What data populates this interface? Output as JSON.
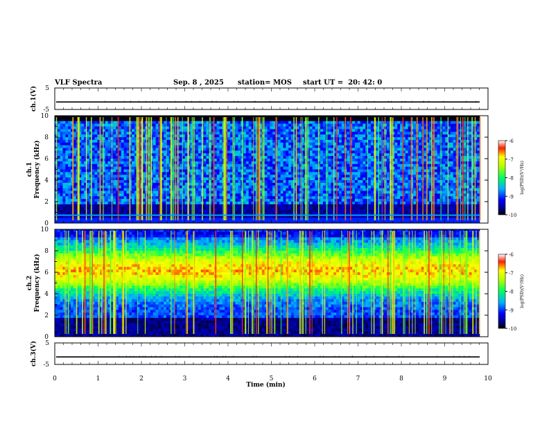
{
  "header": {
    "title": "VLF Spectra",
    "date": "Sep. 8 , 2025",
    "station": "station= MOS",
    "start": "start UT =  20: 42: 0"
  },
  "chart_data": [
    {
      "type": "line",
      "title": "",
      "ylabel": "ch.1(V)",
      "ylim": [
        -5,
        5
      ],
      "yticks": [
        "5",
        "-5"
      ],
      "xlim": [
        0,
        10
      ],
      "series": [
        {
          "values": [
            -1.5,
            -1.5
          ]
        }
      ]
    },
    {
      "type": "heatmap",
      "ylabel": "ch.1\nFrequency (kHz)",
      "ylabel_line1": "ch.1",
      "ylabel_line2": "Frequency (kHz)",
      "ylim": [
        0,
        10
      ],
      "yticks": [
        "0",
        "2",
        "4",
        "6",
        "8",
        "10"
      ],
      "xlim": [
        0,
        10
      ],
      "colorbar": {
        "label": "log(PSD)(V²/Hz)",
        "range": [
          -10,
          -6
        ],
        "ticks": [
          "-6",
          "-7",
          "-8",
          "-9",
          "-10"
        ]
      }
    },
    {
      "type": "heatmap",
      "ylabel": "ch.2\nFrequency (kHz)",
      "ylabel_line1": "ch.2",
      "ylabel_line2": "Frequency (kHz)",
      "ylim": [
        0,
        10
      ],
      "yticks": [
        "0",
        "2",
        "4",
        "6",
        "8",
        "10"
      ],
      "xlim": [
        0,
        10
      ],
      "colorbar": {
        "label": "log(PSD)(V²/Hz)",
        "range": [
          -10,
          -6
        ],
        "ticks": [
          "-6",
          "-7",
          "-8",
          "-9",
          "-10"
        ]
      }
    },
    {
      "type": "line",
      "ylabel": "ch.3(V)",
      "ylim": [
        -5,
        5
      ],
      "yticks": [
        "5",
        "-5"
      ],
      "xlim": [
        0,
        10
      ],
      "xlabel": "Time (min)",
      "xticks": [
        "0",
        "1",
        "2",
        "3",
        "4",
        "5",
        "6",
        "7",
        "8",
        "9",
        "10"
      ],
      "series": [
        {
          "values": [
            -1.5,
            -1.5
          ]
        }
      ]
    }
  ]
}
